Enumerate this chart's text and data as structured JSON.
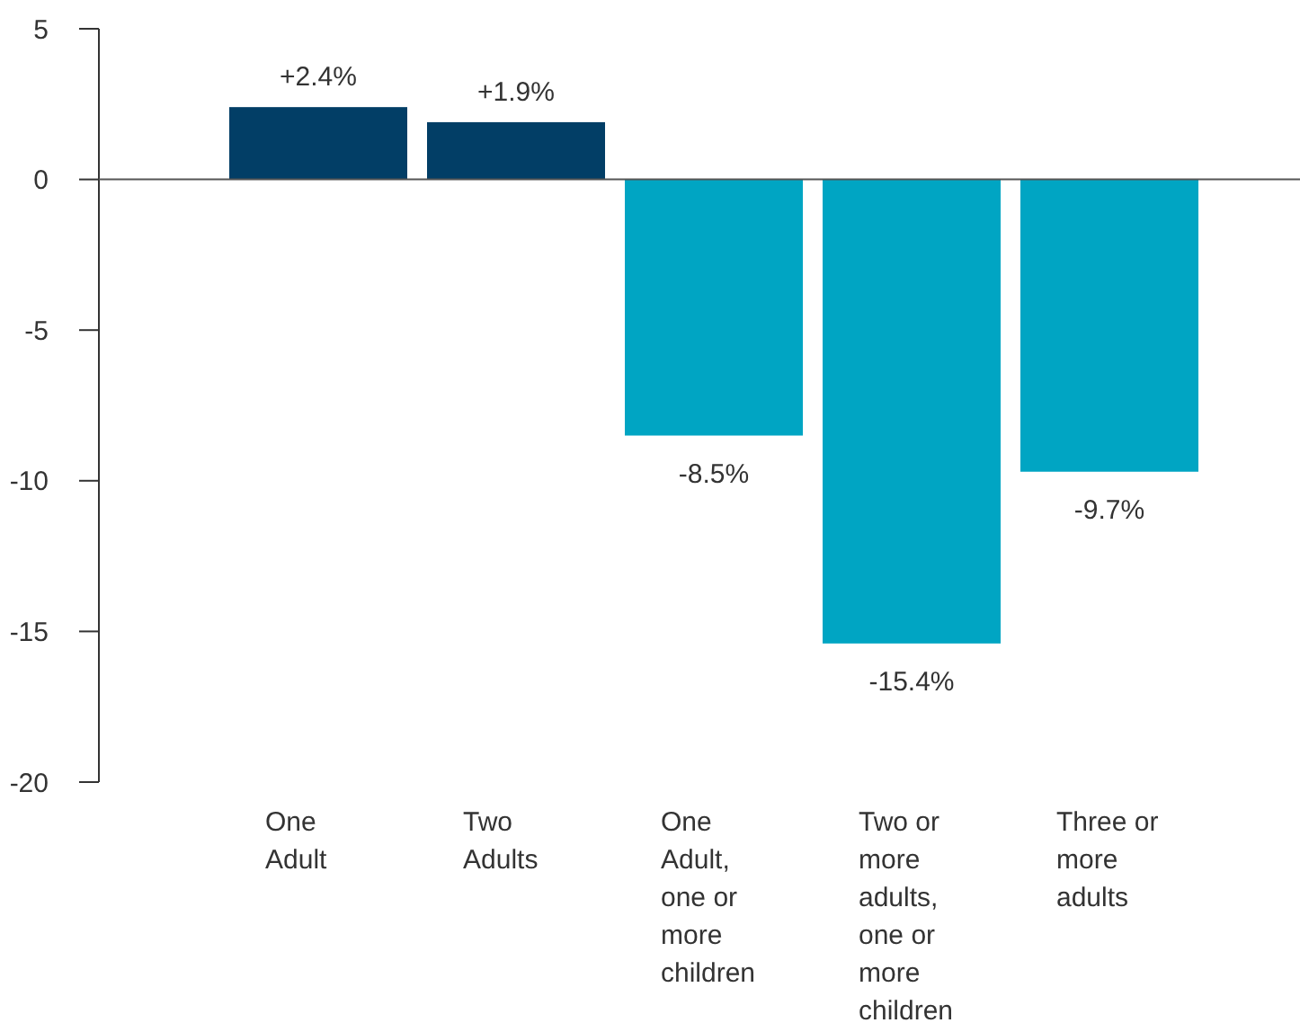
{
  "chart_data": {
    "type": "bar",
    "categories": [
      "One\nAdult",
      "Two\nAdults",
      "One\nAdult,\none or\nmore\nchildren",
      "Two or\nmore\nadults,\none or\nmore\nchildren",
      "Three or\nmore\nadults"
    ],
    "values": [
      2.4,
      1.9,
      -8.5,
      -15.4,
      -9.7
    ],
    "colors": [
      "#023e66",
      "#023e66",
      "#00a5c3",
      "#00a5c3",
      "#00a5c3"
    ],
    "value_labels": [
      "+2.4%",
      "+1.9%",
      "-8.5%",
      "-15.4%",
      "-9.7%"
    ],
    "ylim": [
      -20,
      5
    ],
    "yticks": [
      -20,
      -15,
      -10,
      -5,
      0,
      5
    ]
  }
}
